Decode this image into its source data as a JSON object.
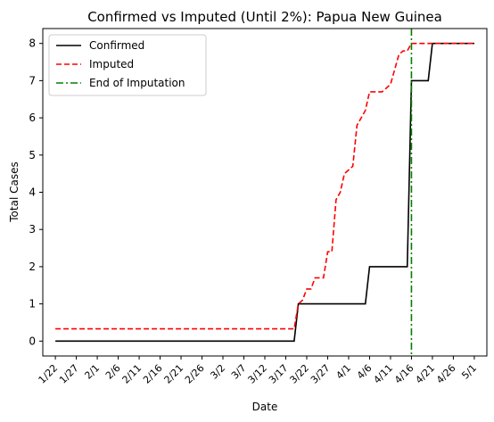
{
  "chart_data": {
    "type": "line",
    "title": "Confirmed vs Imputed (Until 2%): Papua New Guinea",
    "xlabel": "Date",
    "ylabel": "Total Cases",
    "x_unit": "day",
    "xlim": [
      "2020-01-19",
      "2020-05-04"
    ],
    "ylim": [
      -0.4,
      8.4
    ],
    "x_ticks": [
      "1/22",
      "1/27",
      "2/1",
      "2/6",
      "2/11",
      "2/16",
      "2/21",
      "2/26",
      "3/2",
      "3/7",
      "3/12",
      "3/17",
      "3/22",
      "3/27",
      "4/1",
      "4/6",
      "4/11",
      "4/16",
      "4/21",
      "4/26",
      "5/1"
    ],
    "x_tick_dates": [
      "2020-01-22",
      "2020-01-27",
      "2020-02-01",
      "2020-02-06",
      "2020-02-11",
      "2020-02-16",
      "2020-02-21",
      "2020-02-26",
      "2020-03-02",
      "2020-03-07",
      "2020-03-12",
      "2020-03-17",
      "2020-03-22",
      "2020-03-27",
      "2020-04-01",
      "2020-04-06",
      "2020-04-11",
      "2020-04-16",
      "2020-04-21",
      "2020-04-26",
      "2020-05-01"
    ],
    "y_ticks": [
      0,
      1,
      2,
      3,
      4,
      5,
      6,
      7,
      8
    ],
    "grid": false,
    "legend_position": "top-left",
    "series": [
      {
        "name": "Confirmed",
        "color": "#000000",
        "style": "solid",
        "points": [
          [
            "2020-01-22",
            0
          ],
          [
            "2020-03-19",
            0
          ],
          [
            "2020-03-20",
            1
          ],
          [
            "2020-04-05",
            1
          ],
          [
            "2020-04-06",
            2
          ],
          [
            "2020-04-15",
            2
          ],
          [
            "2020-04-16",
            7
          ],
          [
            "2020-04-20",
            7
          ],
          [
            "2020-04-21",
            8
          ],
          [
            "2020-05-01",
            8
          ]
        ]
      },
      {
        "name": "Imputed",
        "color": "#ff0000",
        "style": "dashed",
        "points": [
          [
            "2020-01-22",
            0.33
          ],
          [
            "2020-03-19",
            0.33
          ],
          [
            "2020-03-20",
            1.0
          ],
          [
            "2020-03-21",
            1.1
          ],
          [
            "2020-03-22",
            1.4
          ],
          [
            "2020-03-23",
            1.4
          ],
          [
            "2020-03-24",
            1.7
          ],
          [
            "2020-03-26",
            1.7
          ],
          [
            "2020-03-27",
            2.4
          ],
          [
            "2020-03-28",
            2.4
          ],
          [
            "2020-03-29",
            3.8
          ],
          [
            "2020-03-30",
            4.0
          ],
          [
            "2020-03-31",
            4.5
          ],
          [
            "2020-04-01",
            4.6
          ],
          [
            "2020-04-02",
            4.7
          ],
          [
            "2020-04-03",
            5.8
          ],
          [
            "2020-04-04",
            6.0
          ],
          [
            "2020-04-05",
            6.2
          ],
          [
            "2020-04-06",
            6.7
          ],
          [
            "2020-04-09",
            6.7
          ],
          [
            "2020-04-10",
            6.8
          ],
          [
            "2020-04-11",
            6.9
          ],
          [
            "2020-04-12",
            7.3
          ],
          [
            "2020-04-13",
            7.7
          ],
          [
            "2020-04-14",
            7.8
          ],
          [
            "2020-04-15",
            7.8
          ],
          [
            "2020-04-16",
            8.0
          ],
          [
            "2020-05-01",
            8.0
          ]
        ]
      }
    ],
    "vertical_lines": [
      {
        "name": "End of Imputation",
        "x": "2020-04-16",
        "color": "#008000",
        "style": "dashdot"
      }
    ]
  }
}
